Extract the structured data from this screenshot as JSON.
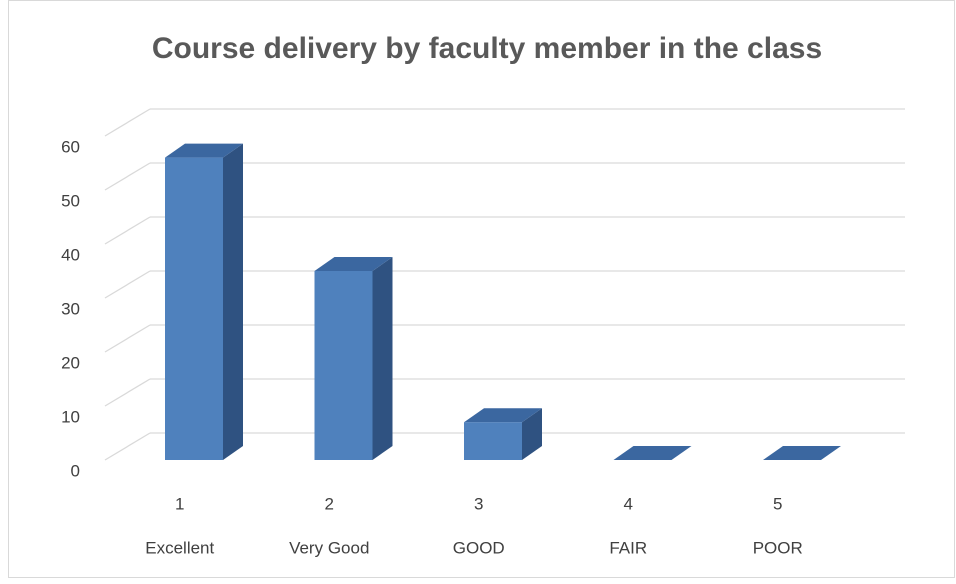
{
  "chart_data": {
    "type": "bar3d",
    "title": "Course delivery by faculty member in the class",
    "x": [
      1,
      2,
      3,
      4,
      5
    ],
    "categories": [
      "Excellent",
      "Very Good",
      "GOOD",
      "FAIR",
      "POOR"
    ],
    "values": [
      56,
      35,
      7,
      0,
      0
    ],
    "color": "#4f81bd",
    "ylim": [
      0,
      60
    ],
    "yticks": [
      0,
      10,
      20,
      30,
      40,
      50,
      60
    ],
    "grid": true
  }
}
